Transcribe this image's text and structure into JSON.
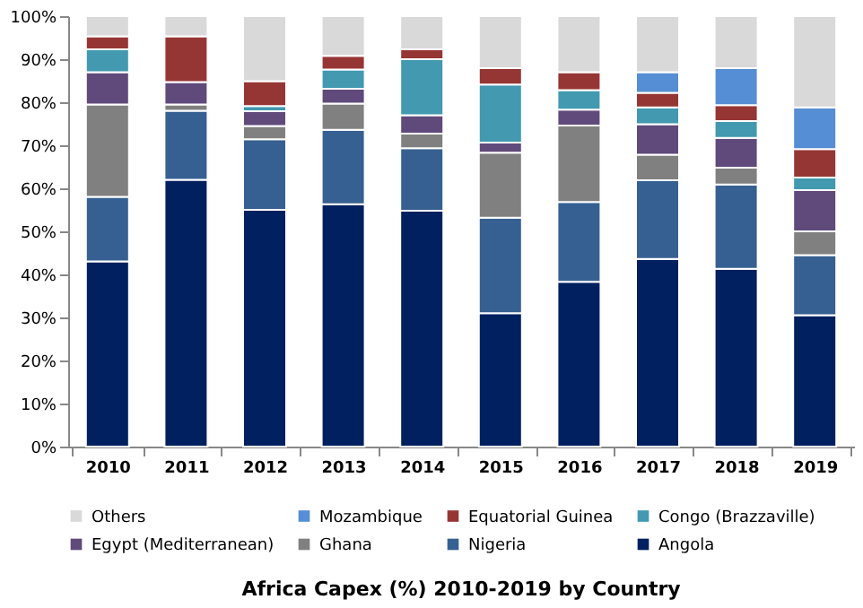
{
  "chart_data": {
    "type": "bar",
    "stacked": true,
    "title": "Africa Capex (%) 2010-2019 by Country",
    "categories": [
      "2010",
      "2011",
      "2012",
      "2013",
      "2014",
      "2015",
      "2016",
      "2017",
      "2018",
      "2019"
    ],
    "series": [
      {
        "name": "Angola",
        "color": "#002060",
        "values": [
          43,
          62,
          55,
          56.3,
          54.8,
          31,
          38.3,
          43.6,
          41.3,
          30.5
        ]
      },
      {
        "name": "Nigeria",
        "color": "#376092",
        "values": [
          15,
          16,
          16.4,
          17.3,
          14.5,
          22.2,
          18.5,
          18.3,
          19.6,
          14
        ]
      },
      {
        "name": "Ghana",
        "color": "#808080",
        "values": [
          21.5,
          1.5,
          3.1,
          6.1,
          3.4,
          15.1,
          17.8,
          5.9,
          3.9,
          5.5
        ]
      },
      {
        "name": "Egypt (Mediterranean)",
        "color": "#604a7b",
        "values": [
          7.5,
          5.2,
          3.4,
          3.4,
          4.3,
          2.3,
          3.7,
          7.1,
          6.9,
          9.6
        ]
      },
      {
        "name": "Congo (Brazzaville)",
        "color": "#4299b0",
        "values": [
          5.3,
          null,
          1.2,
          4.5,
          13,
          13.5,
          4.5,
          3.9,
          3.9,
          2.9
        ]
      },
      {
        "name": "Equatorial Guinea",
        "color": "#963634",
        "values": [
          3,
          10.6,
          5.8,
          3.2,
          2.3,
          3.8,
          4.2,
          3.4,
          3.7,
          6.6
        ]
      },
      {
        "name": "Mozambique",
        "color": "#558ed5",
        "values": [
          null,
          null,
          null,
          null,
          null,
          null,
          null,
          4.8,
          8.6,
          9.7
        ]
      },
      {
        "name": "Others",
        "color": "#d9d9d9",
        "values": [
          4.7,
          4.7,
          15.1,
          9.2,
          7.7,
          12.1,
          13,
          13,
          12.1,
          21.2
        ]
      }
    ],
    "ylim": [
      0,
      100
    ],
    "yticks": [
      {
        "value": 0,
        "label": "0%"
      },
      {
        "value": 10,
        "label": "10%"
      },
      {
        "value": 20,
        "label": "20%"
      },
      {
        "value": 30,
        "label": "30%"
      },
      {
        "value": 40,
        "label": "40%"
      },
      {
        "value": 50,
        "label": "50%"
      },
      {
        "value": 60,
        "label": "60%"
      },
      {
        "value": 70,
        "label": "70%"
      },
      {
        "value": 80,
        "label": "80%"
      },
      {
        "value": 90,
        "label": "90%"
      },
      {
        "value": 100,
        "label": "100%"
      }
    ],
    "legend": "bottom",
    "grid": false
  }
}
